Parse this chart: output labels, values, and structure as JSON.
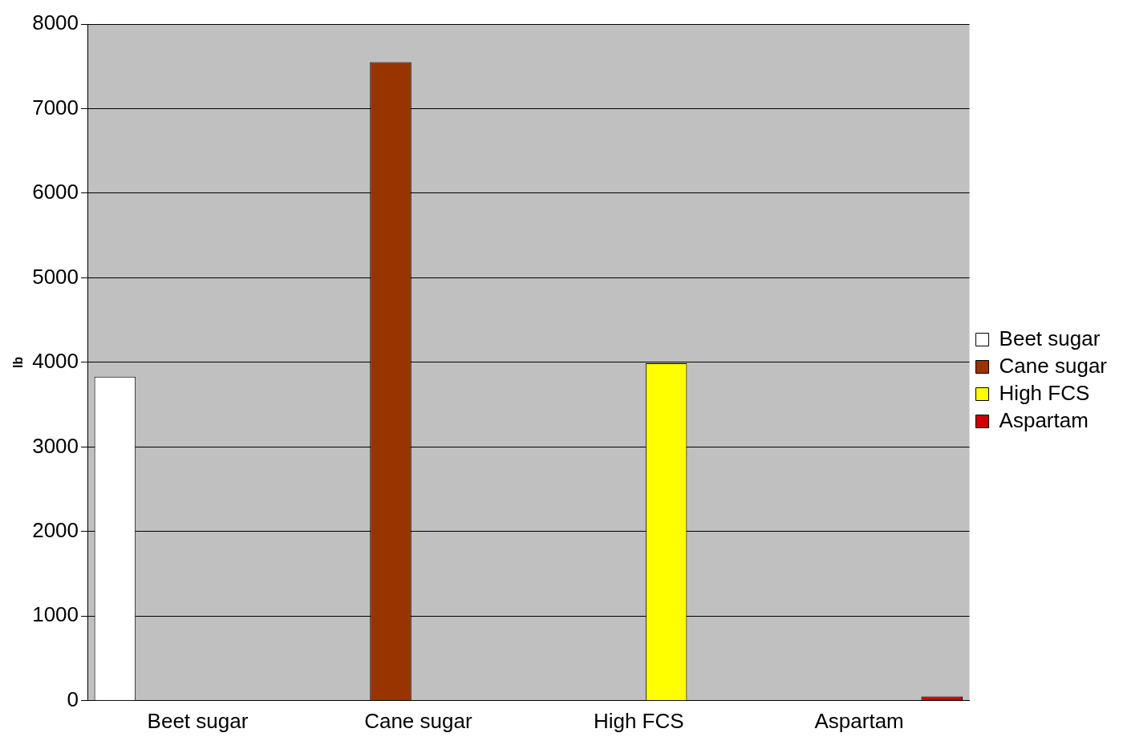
{
  "chart_data": {
    "type": "bar",
    "ylabel": "lb",
    "categories": [
      "Beet sugar",
      "Cane sugar",
      "High FCS",
      "Aspartam"
    ],
    "series": [
      {
        "name": "Beet sugar",
        "color": "#ffffff",
        "values": [
          3830,
          null,
          null,
          null
        ]
      },
      {
        "name": "Cane sugar",
        "color": "#993300",
        "values": [
          null,
          7550,
          null,
          null
        ]
      },
      {
        "name": "High FCS",
        "color": "#ffff00",
        "values": [
          null,
          null,
          3990,
          null
        ]
      },
      {
        "name": "Aspartam",
        "color": "#cc0000",
        "values": [
          null,
          null,
          null,
          50
        ]
      }
    ],
    "ylim": [
      0,
      8000
    ],
    "yticks": [
      0,
      1000,
      2000,
      3000,
      4000,
      5000,
      6000,
      7000,
      8000
    ],
    "grid": "y",
    "legend": "right"
  }
}
